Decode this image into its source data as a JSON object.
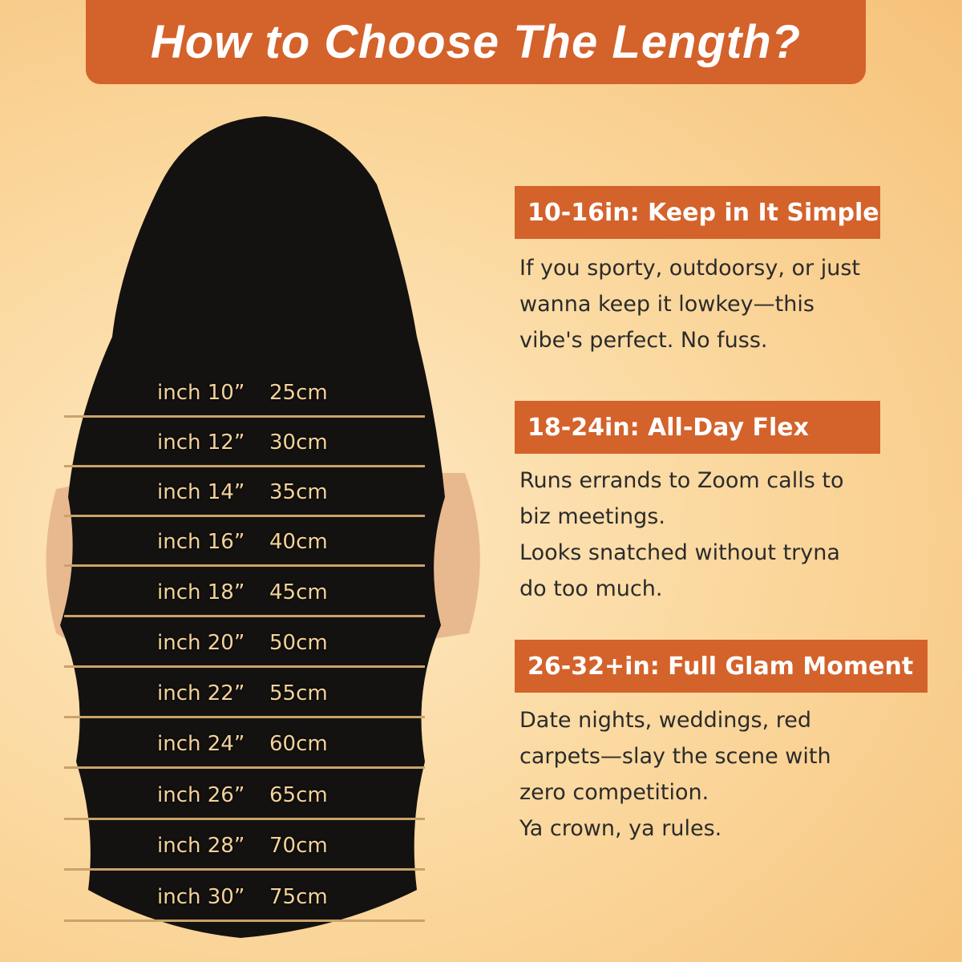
{
  "title": "How to Choose The Length?",
  "lengths": [
    {
      "inch": "inch 10”",
      "cm": "25cm"
    },
    {
      "inch": "inch 12”",
      "cm": "30cm"
    },
    {
      "inch": "inch 14”",
      "cm": "35cm"
    },
    {
      "inch": "inch 16”",
      "cm": "40cm"
    },
    {
      "inch": "inch 18”",
      "cm": "45cm"
    },
    {
      "inch": "inch 20”",
      "cm": "50cm"
    },
    {
      "inch": "inch 22”",
      "cm": "55cm"
    },
    {
      "inch": "inch 24”",
      "cm": "60cm"
    },
    {
      "inch": "inch 26”",
      "cm": "65cm"
    },
    {
      "inch": "inch 28”",
      "cm": "70cm"
    },
    {
      "inch": "inch 30”",
      "cm": "75cm"
    }
  ],
  "sections": [
    {
      "heading": "10-16in: Keep in It Simple",
      "lines": [
        "If you sporty, outdoorsy, or just",
        "wanna keep it lowkey—this",
        "vibe's perfect. No fuss."
      ]
    },
    {
      "heading": "18-24in: All-Day Flex",
      "lines": [
        "Runs errands to Zoom calls to",
        "biz meetings.",
        "Looks snatched without tryna",
        "do too much."
      ]
    },
    {
      "heading": "26-32+in: Full Glam Moment",
      "lines": [
        "Date nights, weddings, red",
        "carpets—slay the scene with",
        "zero competition.",
        "Ya crown, ya rules."
      ]
    }
  ],
  "colors": {
    "accent": "#d4622b",
    "label": "#f3d29a",
    "hair": "#141210"
  }
}
